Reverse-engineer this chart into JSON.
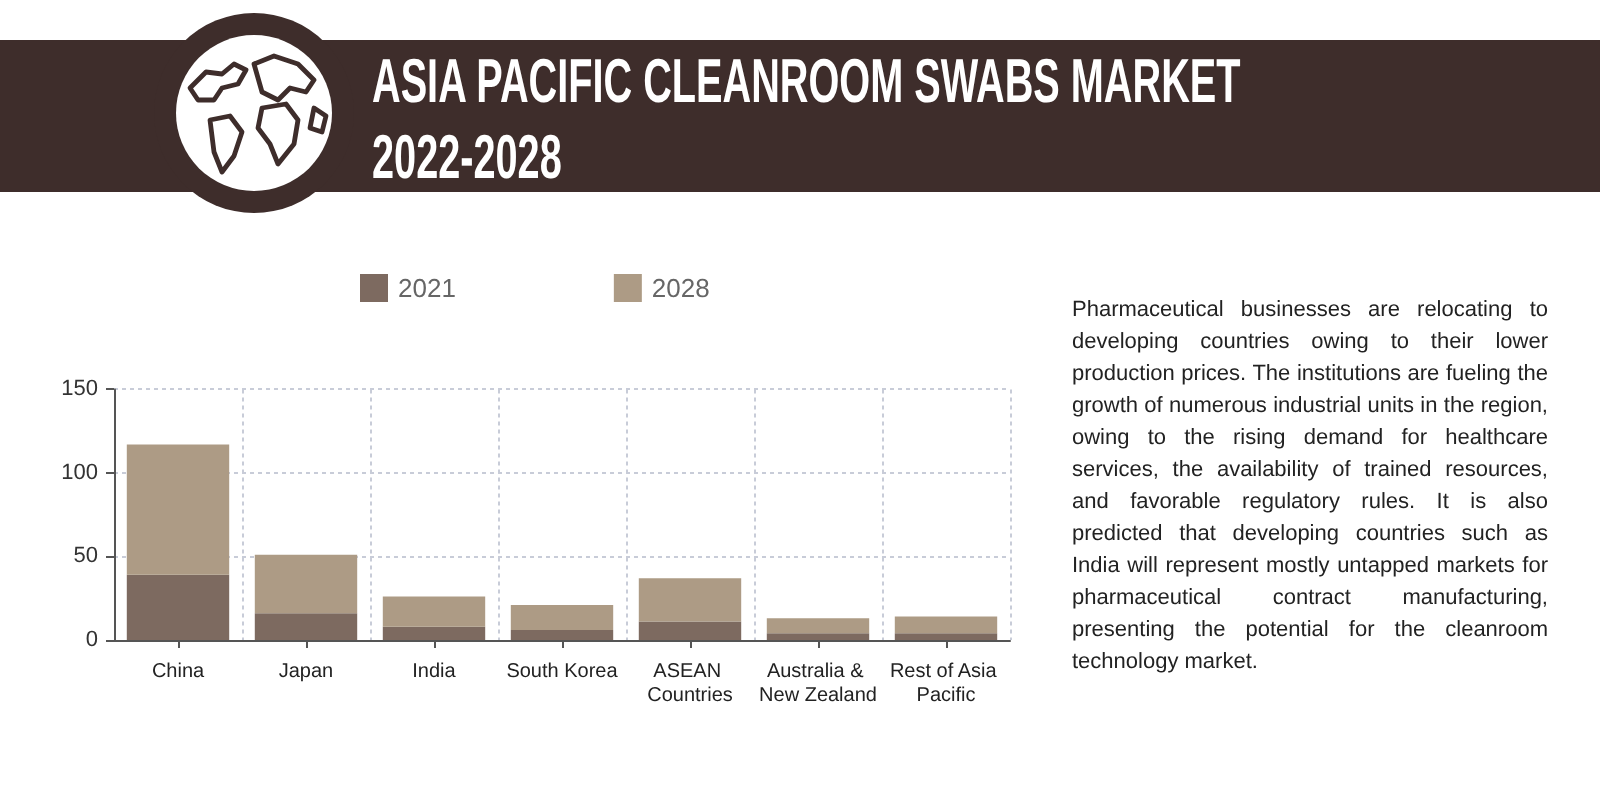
{
  "chart_data": {
    "type": "bar",
    "title": "ASIA PACIFIC CLEANROOM SWABS MARKET 2022-2028",
    "categories": [
      "China",
      "Japan",
      "India",
      "South Korea",
      "ASEAN Countries",
      "Australia & New Zealand",
      "Rest of Asia Pacific"
    ],
    "series": [
      {
        "name": "2021",
        "color": "#7d6a60",
        "values": [
          39,
          16,
          8,
          6,
          11,
          4,
          4
        ]
      },
      {
        "name": "2028",
        "color": "#ad9b85",
        "values": [
          78,
          35,
          18,
          15,
          26,
          9,
          10
        ]
      }
    ],
    "stacked": true,
    "ylim": [
      0,
      150
    ],
    "yticks": [
      0,
      50,
      100,
      150
    ],
    "grid": true,
    "legend": "top",
    "annotations": [
      "Pharmaceutical businesses are relocating to developing countries owing to their lower production prices. The institutions are fueling the growth of numerous industrial units in the region, owing to the rising demand for healthcare services, the availability of trained resources, and favorable regulatory rules. It is also predicted that developing countries such as India will represent mostly untapped markets for pharmaceutical contract manufacturing, presenting the potential for the cleanroom technology market."
    ]
  }
}
